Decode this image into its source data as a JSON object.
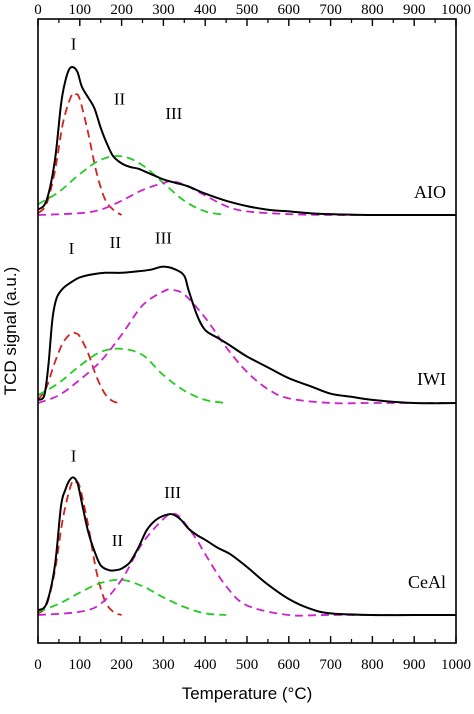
{
  "chart_data": {
    "type": "line",
    "xlabel": "Temperature (°C)",
    "ylabel": "TCD signal (a.u.)",
    "xlim": [
      0,
      1000
    ],
    "x_ticks": [
      0,
      100,
      200,
      300,
      400,
      500,
      600,
      700,
      800,
      900,
      1000
    ],
    "x_tick_labels": [
      "0",
      "100",
      "200",
      "300",
      "400",
      "500",
      "600",
      "700",
      "800",
      "900",
      "1000"
    ],
    "top_axis_ticks": true,
    "grid": false,
    "legend": "none",
    "colors": {
      "experimental": "#000000",
      "peak_I": "#d42020",
      "peak_II": "#22cc22",
      "peak_III": "#cc22cc"
    },
    "panels": [
      {
        "name": "AIO",
        "baseline": 0.0,
        "peak_labels": [
          {
            "text": "I",
            "x": 85,
            "y": 0.93
          },
          {
            "text": "II",
            "x": 195,
            "y": 0.62
          },
          {
            "text": "III",
            "x": 325,
            "y": 0.54
          }
        ],
        "experimental": {
          "x": [
            0,
            20,
            40,
            55,
            65,
            75,
            85,
            95,
            105,
            120,
            135,
            150,
            165,
            180,
            200,
            220,
            240,
            260,
            280,
            300,
            330,
            360,
            400,
            450,
            500,
            550,
            600,
            650,
            700,
            800,
            900,
            1000
          ],
          "y": [
            0.03,
            0.08,
            0.3,
            0.62,
            0.75,
            0.82,
            0.83,
            0.8,
            0.72,
            0.66,
            0.6,
            0.49,
            0.4,
            0.33,
            0.29,
            0.27,
            0.26,
            0.24,
            0.22,
            0.2,
            0.18,
            0.16,
            0.12,
            0.08,
            0.05,
            0.03,
            0.02,
            0.01,
            0.005,
            0.0,
            0.0,
            0.0
          ]
        },
        "peak_I": {
          "x": [
            0,
            20,
            40,
            60,
            80,
            90,
            100,
            120,
            140,
            160,
            180,
            200
          ],
          "y": [
            0.01,
            0.06,
            0.24,
            0.52,
            0.67,
            0.68,
            0.65,
            0.46,
            0.24,
            0.09,
            0.03,
            0.0
          ]
        },
        "peak_II": {
          "x": [
            0,
            50,
            100,
            150,
            200,
            250,
            300,
            350,
            400,
            450
          ],
          "y": [
            0.06,
            0.13,
            0.23,
            0.31,
            0.33,
            0.28,
            0.18,
            0.08,
            0.02,
            0.0
          ]
        },
        "peak_III": {
          "x": [
            0,
            100,
            150,
            200,
            250,
            300,
            320,
            350,
            400,
            450,
            500,
            600,
            700,
            800,
            1000
          ],
          "y": [
            0.0,
            0.01,
            0.03,
            0.08,
            0.14,
            0.18,
            0.19,
            0.17,
            0.11,
            0.05,
            0.02,
            0.005,
            0.0,
            0.0,
            0.0
          ]
        }
      },
      {
        "name": "IWI",
        "baseline": 0.0,
        "peak_labels": [
          {
            "text": "I",
            "x": 80,
            "y": 0.96
          },
          {
            "text": "II",
            "x": 185,
            "y": 1.0
          },
          {
            "text": "III",
            "x": 300,
            "y": 1.03
          }
        ],
        "experimental": {
          "x": [
            0,
            15,
            25,
            35,
            45,
            60,
            80,
            100,
            130,
            160,
            200,
            240,
            270,
            300,
            330,
            350,
            360,
            380,
            400,
            430,
            460,
            500,
            550,
            600,
            650,
            700,
            750,
            800,
            900,
            1000
          ],
          "y": [
            0.02,
            0.05,
            0.25,
            0.55,
            0.68,
            0.74,
            0.78,
            0.81,
            0.83,
            0.84,
            0.84,
            0.85,
            0.86,
            0.88,
            0.86,
            0.82,
            0.73,
            0.57,
            0.47,
            0.42,
            0.37,
            0.3,
            0.23,
            0.16,
            0.11,
            0.06,
            0.04,
            0.02,
            0.0,
            0.0
          ]
        },
        "peak_I": {
          "x": [
            0,
            20,
            40,
            60,
            80,
            90,
            100,
            120,
            140,
            160,
            180,
            200
          ],
          "y": [
            0.02,
            0.1,
            0.26,
            0.39,
            0.45,
            0.45,
            0.43,
            0.32,
            0.17,
            0.06,
            0.01,
            0.0
          ]
        },
        "peak_II": {
          "x": [
            0,
            50,
            100,
            150,
            200,
            250,
            300,
            350,
            400,
            450
          ],
          "y": [
            0.05,
            0.13,
            0.24,
            0.33,
            0.35,
            0.31,
            0.18,
            0.08,
            0.02,
            0.0
          ]
        },
        "peak_III": {
          "x": [
            0,
            50,
            100,
            150,
            200,
            250,
            300,
            320,
            350,
            400,
            450,
            500,
            550,
            600,
            700,
            800,
            1000
          ],
          "y": [
            0.0,
            0.05,
            0.15,
            0.27,
            0.44,
            0.63,
            0.72,
            0.73,
            0.7,
            0.55,
            0.36,
            0.2,
            0.09,
            0.03,
            0.0,
            0.0,
            0.0
          ]
        }
      },
      {
        "name": "CeAl",
        "baseline": 0.0,
        "peak_labels": [
          {
            "text": "I",
            "x": 85,
            "y": 0.96
          },
          {
            "text": "II",
            "x": 190,
            "y": 0.43
          },
          {
            "text": "III",
            "x": 322,
            "y": 0.73
          }
        ],
        "experimental": {
          "x": [
            0,
            20,
            40,
            55,
            65,
            75,
            85,
            95,
            105,
            120,
            135,
            150,
            170,
            185,
            200,
            220,
            240,
            260,
            280,
            300,
            320,
            340,
            360,
            380,
            400,
            430,
            460,
            500,
            550,
            600,
            650,
            700,
            800,
            900,
            1000
          ],
          "y": [
            0.03,
            0.07,
            0.3,
            0.68,
            0.78,
            0.84,
            0.86,
            0.82,
            0.7,
            0.52,
            0.4,
            0.31,
            0.28,
            0.28,
            0.29,
            0.33,
            0.42,
            0.53,
            0.59,
            0.62,
            0.63,
            0.6,
            0.54,
            0.5,
            0.47,
            0.42,
            0.38,
            0.3,
            0.19,
            0.1,
            0.04,
            0.01,
            0.0,
            0.0,
            0.0
          ]
        },
        "peak_I": {
          "x": [
            0,
            20,
            40,
            60,
            80,
            90,
            100,
            120,
            140,
            160,
            180,
            200
          ],
          "y": [
            0.01,
            0.06,
            0.27,
            0.61,
            0.82,
            0.83,
            0.8,
            0.56,
            0.27,
            0.09,
            0.02,
            0.0
          ]
        },
        "peak_II": {
          "x": [
            0,
            50,
            100,
            150,
            200,
            250,
            300,
            350,
            400,
            450
          ],
          "y": [
            0.02,
            0.07,
            0.14,
            0.2,
            0.22,
            0.18,
            0.11,
            0.05,
            0.01,
            0.0
          ]
        },
        "peak_III": {
          "x": [
            0,
            100,
            150,
            200,
            250,
            300,
            320,
            340,
            380,
            400,
            450,
            500,
            600,
            700,
            1000
          ],
          "y": [
            0.0,
            0.02,
            0.07,
            0.22,
            0.45,
            0.6,
            0.63,
            0.61,
            0.47,
            0.38,
            0.18,
            0.06,
            0.0,
            0.0,
            0.0
          ]
        }
      }
    ]
  }
}
